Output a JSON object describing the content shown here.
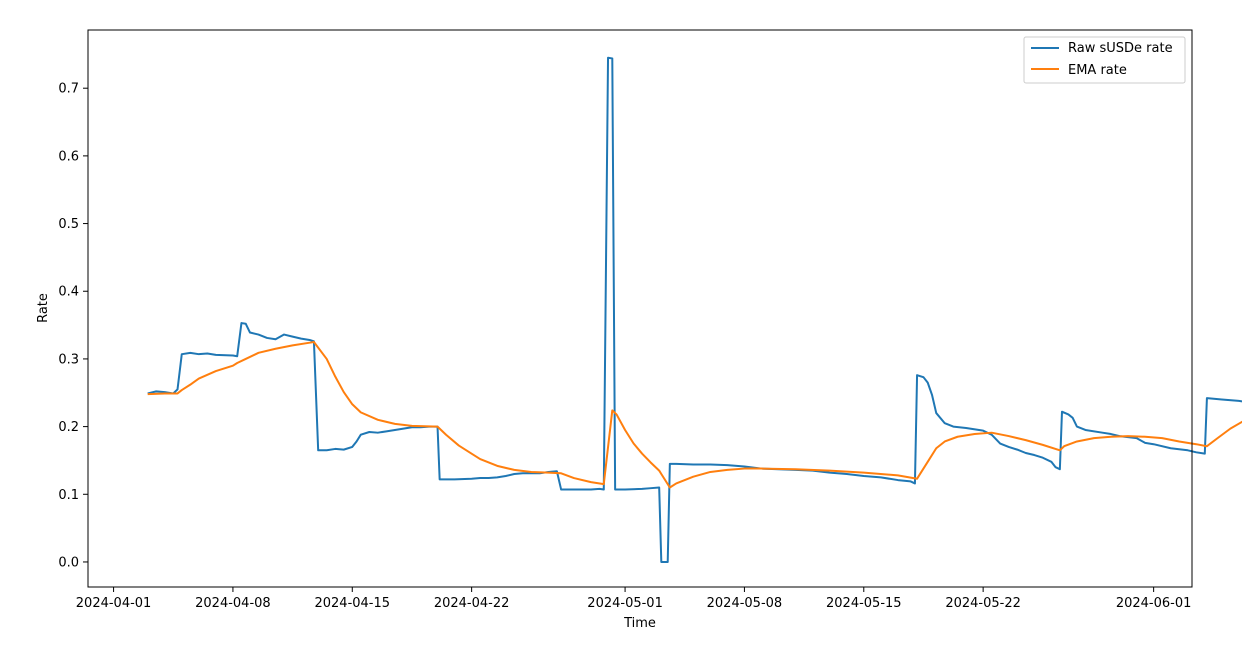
{
  "chart_data": {
    "type": "line",
    "title": "",
    "xlabel": "Time",
    "ylabel": "Rate",
    "xlim": [
      "2024-03-30T12:00",
      "2024-06-03T06:00"
    ],
    "ylim": [
      -0.037,
      0.786
    ],
    "x_ticks": [
      "2024-04-01",
      "2024-04-08",
      "2024-04-15",
      "2024-04-22",
      "2024-05-01",
      "2024-05-08",
      "2024-05-15",
      "2024-05-22",
      "2024-06-01"
    ],
    "y_ticks": [
      "0.0",
      "0.1",
      "0.2",
      "0.3",
      "0.4",
      "0.5",
      "0.6",
      "0.7"
    ],
    "grid": false,
    "legend_position": "top-right",
    "series": [
      {
        "name": "Raw sUSDe rate",
        "color": "#1f77b4",
        "points": [
          [
            "2024-04-03T00:00",
            0.249
          ],
          [
            "2024-04-03T12:00",
            0.252
          ],
          [
            "2024-04-04T00:00",
            0.251
          ],
          [
            "2024-04-04T12:00",
            0.249
          ],
          [
            "2024-04-04T18:00",
            0.255
          ],
          [
            "2024-04-05T00:00",
            0.307
          ],
          [
            "2024-04-05T12:00",
            0.309
          ],
          [
            "2024-04-06T00:00",
            0.307
          ],
          [
            "2024-04-06T12:00",
            0.308
          ],
          [
            "2024-04-07T00:00",
            0.306
          ],
          [
            "2024-04-08T00:00",
            0.305
          ],
          [
            "2024-04-08T06:00",
            0.304
          ],
          [
            "2024-04-08T12:00",
            0.353
          ],
          [
            "2024-04-08T18:00",
            0.352
          ],
          [
            "2024-04-09T00:00",
            0.339
          ],
          [
            "2024-04-09T12:00",
            0.336
          ],
          [
            "2024-04-10T00:00",
            0.331
          ],
          [
            "2024-04-10T12:00",
            0.329
          ],
          [
            "2024-04-11T00:00",
            0.336
          ],
          [
            "2024-04-11T12:00",
            0.333
          ],
          [
            "2024-04-12T00:00",
            0.33
          ],
          [
            "2024-04-12T12:00",
            0.328
          ],
          [
            "2024-04-12T18:00",
            0.326
          ],
          [
            "2024-04-13T00:00",
            0.165
          ],
          [
            "2024-04-13T12:00",
            0.165
          ],
          [
            "2024-04-14T00:00",
            0.167
          ],
          [
            "2024-04-14T12:00",
            0.166
          ],
          [
            "2024-04-15T00:00",
            0.17
          ],
          [
            "2024-04-15T06:00",
            0.178
          ],
          [
            "2024-04-15T12:00",
            0.188
          ],
          [
            "2024-04-16T00:00",
            0.192
          ],
          [
            "2024-04-16T12:00",
            0.191
          ],
          [
            "2024-04-17T00:00",
            0.193
          ],
          [
            "2024-04-17T12:00",
            0.195
          ],
          [
            "2024-04-18T00:00",
            0.197
          ],
          [
            "2024-04-18T12:00",
            0.199
          ],
          [
            "2024-04-19T00:00",
            0.199
          ],
          [
            "2024-04-19T12:00",
            0.2
          ],
          [
            "2024-04-20T00:00",
            0.2
          ],
          [
            "2024-04-20T03:00",
            0.122
          ],
          [
            "2024-04-21T00:00",
            0.122
          ],
          [
            "2024-04-22T00:00",
            0.123
          ],
          [
            "2024-04-22T12:00",
            0.124
          ],
          [
            "2024-04-23T00:00",
            0.124
          ],
          [
            "2024-04-23T12:00",
            0.125
          ],
          [
            "2024-04-24T00:00",
            0.127
          ],
          [
            "2024-04-24T12:00",
            0.13
          ],
          [
            "2024-04-25T00:00",
            0.131
          ],
          [
            "2024-04-26T00:00",
            0.131
          ],
          [
            "2024-04-26T12:00",
            0.133
          ],
          [
            "2024-04-27T00:00",
            0.134
          ],
          [
            "2024-04-27T06:00",
            0.107
          ],
          [
            "2024-04-28T00:00",
            0.107
          ],
          [
            "2024-04-29T00:00",
            0.107
          ],
          [
            "2024-04-29T12:00",
            0.108
          ],
          [
            "2024-04-29T18:00",
            0.107
          ],
          [
            "2024-04-30T00:00",
            0.745
          ],
          [
            "2024-04-30T06:00",
            0.744
          ],
          [
            "2024-04-30T10:00",
            0.107
          ],
          [
            "2024-05-01T00:00",
            0.107
          ],
          [
            "2024-05-02T00:00",
            0.108
          ],
          [
            "2024-05-02T12:00",
            0.109
          ],
          [
            "2024-05-03T00:00",
            0.11
          ],
          [
            "2024-05-03T03:00",
            0.0
          ],
          [
            "2024-05-03T12:00",
            0.0
          ],
          [
            "2024-05-03T15:00",
            0.145
          ],
          [
            "2024-05-04T00:00",
            0.145
          ],
          [
            "2024-05-05T00:00",
            0.144
          ],
          [
            "2024-05-06T00:00",
            0.144
          ],
          [
            "2024-05-07T00:00",
            0.143
          ],
          [
            "2024-05-08T00:00",
            0.141
          ],
          [
            "2024-05-09T00:00",
            0.138
          ],
          [
            "2024-05-10T00:00",
            0.137
          ],
          [
            "2024-05-11T00:00",
            0.136
          ],
          [
            "2024-05-12T00:00",
            0.135
          ],
          [
            "2024-05-13T00:00",
            0.132
          ],
          [
            "2024-05-14T00:00",
            0.13
          ],
          [
            "2024-05-15T00:00",
            0.127
          ],
          [
            "2024-05-16T00:00",
            0.125
          ],
          [
            "2024-05-17T00:00",
            0.121
          ],
          [
            "2024-05-17T18:00",
            0.119
          ],
          [
            "2024-05-18T00:00",
            0.116
          ],
          [
            "2024-05-18T03:00",
            0.276
          ],
          [
            "2024-05-18T12:00",
            0.273
          ],
          [
            "2024-05-18T18:00",
            0.265
          ],
          [
            "2024-05-19T00:00",
            0.247
          ],
          [
            "2024-05-19T06:00",
            0.22
          ],
          [
            "2024-05-19T18:00",
            0.205
          ],
          [
            "2024-05-20T06:00",
            0.2
          ],
          [
            "2024-05-21T00:00",
            0.198
          ],
          [
            "2024-05-22T00:00",
            0.194
          ],
          [
            "2024-05-22T12:00",
            0.188
          ],
          [
            "2024-05-23T00:00",
            0.175
          ],
          [
            "2024-05-23T12:00",
            0.17
          ],
          [
            "2024-05-24T00:00",
            0.166
          ],
          [
            "2024-05-24T12:00",
            0.161
          ],
          [
            "2024-05-25T00:00",
            0.158
          ],
          [
            "2024-05-25T12:00",
            0.154
          ],
          [
            "2024-05-26T00:00",
            0.148
          ],
          [
            "2024-05-26T06:00",
            0.14
          ],
          [
            "2024-05-26T12:00",
            0.137
          ],
          [
            "2024-05-26T15:00",
            0.222
          ],
          [
            "2024-05-27T00:00",
            0.218
          ],
          [
            "2024-05-27T06:00",
            0.213
          ],
          [
            "2024-05-27T12:00",
            0.2
          ],
          [
            "2024-05-28T00:00",
            0.195
          ],
          [
            "2024-05-29T00:00",
            0.191
          ],
          [
            "2024-05-29T12:00",
            0.189
          ],
          [
            "2024-05-30T00:00",
            0.186
          ],
          [
            "2024-05-31T00:00",
            0.183
          ],
          [
            "2024-05-31T12:00",
            0.176
          ],
          [
            "2024-06-01T00:00",
            0.174
          ],
          [
            "2024-06-02T00:00",
            0.168
          ],
          [
            "2024-06-03T00:00",
            0.165
          ],
          [
            "2024-06-03T12:00",
            0.162
          ],
          [
            "2024-06-04T00:00",
            0.16
          ],
          [
            "2024-06-04T03:00",
            0.242
          ],
          [
            "2024-06-05T00:00",
            0.24
          ],
          [
            "2024-06-06T00:00",
            0.238
          ],
          [
            "2024-06-06T06:00",
            0.237
          ]
        ]
      },
      {
        "name": "EMA rate",
        "color": "#ff7f0e",
        "points": [
          [
            "2024-04-03T00:00",
            0.248
          ],
          [
            "2024-04-04T00:00",
            0.249
          ],
          [
            "2024-04-04T18:00",
            0.249
          ],
          [
            "2024-04-05T00:00",
            0.254
          ],
          [
            "2024-04-05T12:00",
            0.262
          ],
          [
            "2024-04-06T00:00",
            0.271
          ],
          [
            "2024-04-07T00:00",
            0.282
          ],
          [
            "2024-04-08T00:00",
            0.29
          ],
          [
            "2024-04-08T06:00",
            0.294
          ],
          [
            "2024-04-08T18:00",
            0.3
          ],
          [
            "2024-04-09T12:00",
            0.309
          ],
          [
            "2024-04-10T12:00",
            0.315
          ],
          [
            "2024-04-11T12:00",
            0.32
          ],
          [
            "2024-04-12T12:00",
            0.324
          ],
          [
            "2024-04-12T18:00",
            0.325
          ],
          [
            "2024-04-13T12:00",
            0.3
          ],
          [
            "2024-04-14T00:00",
            0.274
          ],
          [
            "2024-04-14T12:00",
            0.251
          ],
          [
            "2024-04-15T00:00",
            0.233
          ],
          [
            "2024-04-15T12:00",
            0.221
          ],
          [
            "2024-04-16T12:00",
            0.21
          ],
          [
            "2024-04-17T12:00",
            0.204
          ],
          [
            "2024-04-18T12:00",
            0.201
          ],
          [
            "2024-04-20T00:00",
            0.2
          ],
          [
            "2024-04-20T12:00",
            0.188
          ],
          [
            "2024-04-21T06:00",
            0.172
          ],
          [
            "2024-04-22T00:00",
            0.16
          ],
          [
            "2024-04-22T12:00",
            0.152
          ],
          [
            "2024-04-23T12:00",
            0.142
          ],
          [
            "2024-04-24T12:00",
            0.136
          ],
          [
            "2024-04-25T12:00",
            0.133
          ],
          [
            "2024-04-26T12:00",
            0.132
          ],
          [
            "2024-04-27T06:00",
            0.131
          ],
          [
            "2024-04-28T00:00",
            0.124
          ],
          [
            "2024-04-29T00:00",
            0.118
          ],
          [
            "2024-04-29T18:00",
            0.115
          ],
          [
            "2024-04-30T06:00",
            0.224
          ],
          [
            "2024-04-30T12:00",
            0.218
          ],
          [
            "2024-05-01T00:00",
            0.195
          ],
          [
            "2024-05-01T12:00",
            0.175
          ],
          [
            "2024-05-02T00:00",
            0.16
          ],
          [
            "2024-05-02T12:00",
            0.147
          ],
          [
            "2024-05-03T00:00",
            0.135
          ],
          [
            "2024-05-03T03:00",
            0.13
          ],
          [
            "2024-05-03T15:00",
            0.11
          ],
          [
            "2024-05-04T00:00",
            0.116
          ],
          [
            "2024-05-05T00:00",
            0.126
          ],
          [
            "2024-05-06T00:00",
            0.133
          ],
          [
            "2024-05-07T00:00",
            0.136
          ],
          [
            "2024-05-08T00:00",
            0.138
          ],
          [
            "2024-05-09T00:00",
            0.138
          ],
          [
            "2024-05-11T00:00",
            0.137
          ],
          [
            "2024-05-13T00:00",
            0.135
          ],
          [
            "2024-05-15T00:00",
            0.132
          ],
          [
            "2024-05-17T00:00",
            0.128
          ],
          [
            "2024-05-18T03:00",
            0.123
          ],
          [
            "2024-05-18T18:00",
            0.148
          ],
          [
            "2024-05-19T06:00",
            0.168
          ],
          [
            "2024-05-19T18:00",
            0.178
          ],
          [
            "2024-05-20T12:00",
            0.185
          ],
          [
            "2024-05-21T12:00",
            0.189
          ],
          [
            "2024-05-22T12:00",
            0.191
          ],
          [
            "2024-05-23T12:00",
            0.186
          ],
          [
            "2024-05-24T12:00",
            0.18
          ],
          [
            "2024-05-25T12:00",
            0.173
          ],
          [
            "2024-05-26T12:00",
            0.165
          ],
          [
            "2024-05-26T18:00",
            0.171
          ],
          [
            "2024-05-27T12:00",
            0.178
          ],
          [
            "2024-05-28T12:00",
            0.183
          ],
          [
            "2024-05-29T12:00",
            0.185
          ],
          [
            "2024-05-30T12:00",
            0.186
          ],
          [
            "2024-05-31T12:00",
            0.185
          ],
          [
            "2024-06-01T12:00",
            0.183
          ],
          [
            "2024-06-02T12:00",
            0.178
          ],
          [
            "2024-06-03T12:00",
            0.174
          ],
          [
            "2024-06-04T03:00",
            0.171
          ],
          [
            "2024-06-04T18:00",
            0.183
          ],
          [
            "2024-06-05T12:00",
            0.197
          ],
          [
            "2024-06-06T06:00",
            0.208
          ]
        ]
      }
    ]
  }
}
